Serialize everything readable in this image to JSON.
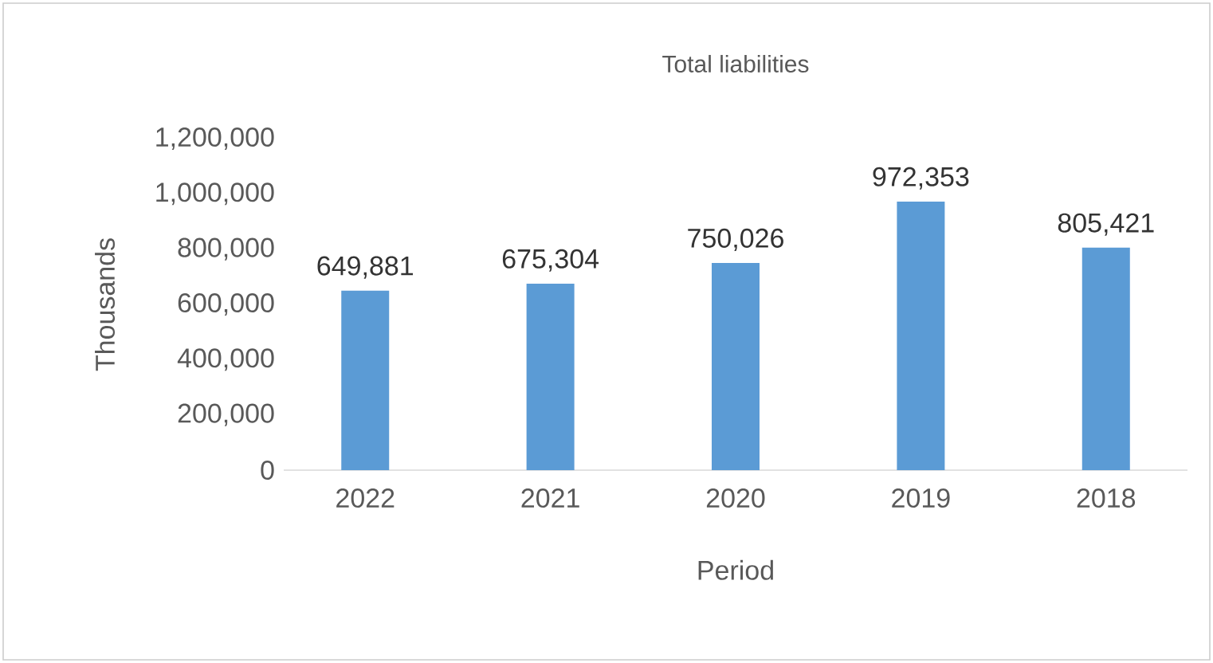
{
  "chart_data": {
    "type": "bar",
    "title": "Total liabilities",
    "xlabel": "Period",
    "ylabel": "Thousands",
    "categories": [
      "2022",
      "2021",
      "2020",
      "2019",
      "2018"
    ],
    "values": [
      649881,
      675304,
      750026,
      972353,
      805421
    ],
    "value_labels": [
      "649,881",
      "675,304",
      "750,026",
      "972,353",
      "805,421"
    ],
    "color": "#5b9bd5",
    "ylim": [
      0,
      1200000
    ],
    "yticks": [
      0,
      {
        "value": 200000,
        "label": "200,000"
      },
      {
        "value": 400000,
        "label": "400,000"
      },
      {
        "value": 600000,
        "label": "600,000"
      },
      {
        "value": 800000,
        "label": "800,000"
      },
      {
        "value": 1000000,
        "label": "1,000,000"
      },
      {
        "value": 1200000,
        "label": "1,200,000"
      }
    ]
  }
}
